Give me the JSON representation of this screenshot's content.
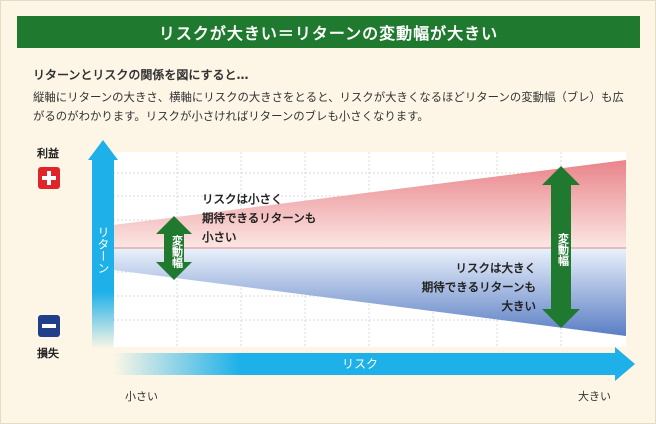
{
  "title": "リスクが大きい＝リターンの変動幅が大きい",
  "subhead": "リターンとリスクの関係を図にすると…",
  "body_text": "縦軸にリターンの大きさ、横軸にリスクの大きさをとると、リスクが大きくなるほどリターンの変動幅（ブレ）も広がるのがわかります。リスクが小さければリターンのブレも小さくなります。",
  "y_axis": {
    "label": "リターン",
    "top_label": "利益",
    "bottom_label": "損失"
  },
  "x_axis": {
    "label": "リスク",
    "left_label": "小さい",
    "right_label": "大きい"
  },
  "annotations": {
    "small": [
      "リスクは小さく",
      "期待できるリターンも",
      "小さい"
    ],
    "large": [
      "リスクは大きく",
      "期待できるリターンも",
      "大きい"
    ],
    "range_label_small": "変動幅",
    "range_label_large": "変動幅"
  },
  "colors": {
    "title_bg": "#1f7a2f",
    "accent_blue": "#1eb0e8",
    "profit_red": "#e0242b",
    "loss_navy": "#1f3f8a",
    "arrow_green": "#1f7a2f",
    "background": "#fdf6e6"
  }
}
